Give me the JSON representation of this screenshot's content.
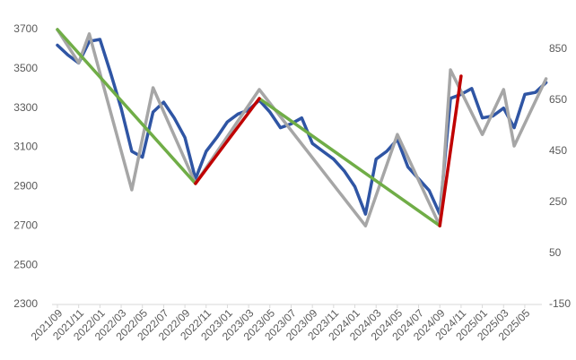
{
  "chart_data": {
    "type": "line",
    "categories": [
      "2021/09",
      "2021/11",
      "2022/01",
      "2022/03",
      "2022/05",
      "2022/07",
      "2022/09",
      "2022/11",
      "2023/01",
      "2023/03",
      "2023/05",
      "2023/07",
      "2023/09",
      "2023/11",
      "2024/01",
      "2024/03",
      "2024/05",
      "2024/07",
      "2024/09",
      "2024/11",
      "2025/01",
      "2025/03",
      "2025/05"
    ],
    "ylim": [
      2300,
      3700
    ],
    "yticks": [
      2300,
      2500,
      2700,
      2900,
      3100,
      3300,
      3500,
      3700
    ],
    "y2lim": [
      -150,
      927
    ],
    "y2ticks": [
      -150,
      50,
      250,
      450,
      650,
      850
    ],
    "series": [
      {
        "color": "#2f55a4",
        "width": 3.5,
        "x": [
          "2021/09",
          "2021/10",
          "2021/11",
          "2021/12",
          "2022/01",
          "2022/02",
          "2022/03",
          "2022/04",
          "2022/05",
          "2022/06",
          "2022/07",
          "2022/08",
          "2022/09",
          "2022/10",
          "2022/11",
          "2022/12",
          "2023/01",
          "2023/02",
          "2023/03",
          "2023/04",
          "2023/05",
          "2023/06",
          "2023/07",
          "2023/08",
          "2023/09",
          "2023/10",
          "2023/11",
          "2023/12",
          "2024/01",
          "2024/02",
          "2024/03",
          "2024/04",
          "2024/05",
          "2024/06",
          "2024/07",
          "2024/08",
          "2024/09",
          "2024/10",
          "2024/11",
          "2024/12",
          "2025/01",
          "2025/02",
          "2025/03",
          "2025/04",
          "2025/05",
          "2025/06",
          "2025/07"
        ],
        "values": [
          3620,
          3570,
          3530,
          3640,
          3650,
          3480,
          3300,
          3080,
          3050,
          3280,
          3330,
          3250,
          3150,
          2940,
          3080,
          3150,
          3230,
          3270,
          3290,
          3340,
          3280,
          3200,
          3220,
          3250,
          3120,
          3080,
          3040,
          2980,
          2900,
          2760,
          3040,
          3080,
          3140,
          3000,
          2940,
          2880,
          2760,
          3350,
          3370,
          3400,
          3250,
          3260,
          3300,
          3200,
          3370,
          3380,
          3430
        ]
      },
      {
        "color": "#a6a6a6",
        "width": 3.5,
        "axis": "y2",
        "x": [
          "2021/09",
          "2021/11",
          "2021/12",
          "2022/04",
          "2022/06",
          "2022/10",
          "2023/04",
          "2024/02",
          "2024/05",
          "2024/09",
          "2024/10",
          "2025/01",
          "2025/03",
          "2025/04",
          "2025/07"
        ],
        "values": [
          927,
          797,
          910,
          299,
          699,
          324,
          692,
          158,
          516,
          158,
          769,
          516,
          692,
          471,
          734
        ]
      },
      {
        "color": "#70ad47",
        "width": 3.5,
        "x": [
          "2021/09",
          "2022/10"
        ],
        "values": [
          3700,
          2916
        ]
      },
      {
        "color": "#70ad47",
        "width": 3.5,
        "x": [
          "2023/04",
          "2024/09"
        ],
        "values": [
          3349,
          2701
        ]
      },
      {
        "color": "#c00000",
        "width": 3.5,
        "x": [
          "2022/10",
          "2023/04"
        ],
        "values": [
          2916,
          3349
        ]
      },
      {
        "color": "#c00000",
        "width": 3.5,
        "x": [
          "2024/09",
          "2024/11"
        ],
        "values": [
          2701,
          3463
        ]
      }
    ]
  }
}
